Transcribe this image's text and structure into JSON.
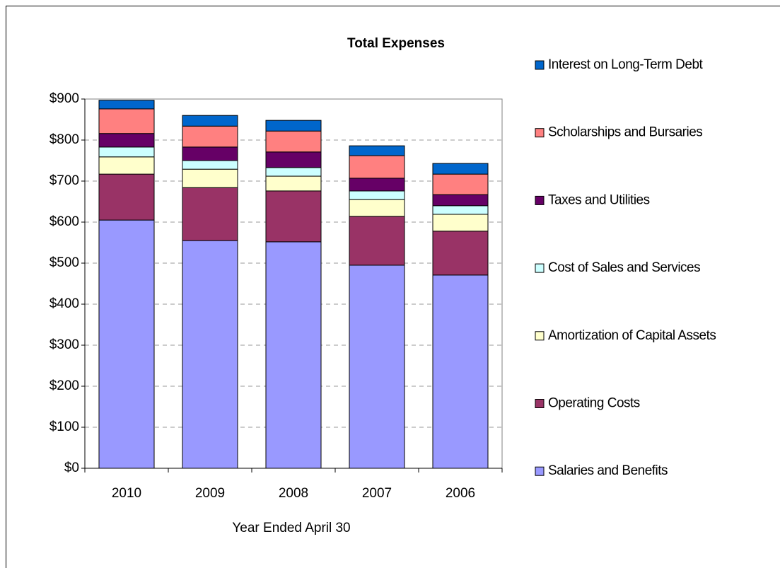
{
  "chart_data": {
    "type": "bar",
    "stacked": true,
    "title": "Total Expenses",
    "x_label": "Year Ended April 30",
    "categories": [
      "2010",
      "2009",
      "2008",
      "2007",
      "2006"
    ],
    "series": [
      {
        "name": "Salaries and Benefits",
        "color": "#9999ff",
        "values": [
          605,
          555,
          552,
          495,
          471
        ]
      },
      {
        "name": "Operating Costs",
        "color": "#993366",
        "values": [
          112,
          129,
          124,
          119,
          107
        ]
      },
      {
        "name": "Amortization of Capital Assets",
        "color": "#ffffcc",
        "values": [
          42,
          45,
          36,
          41,
          41
        ]
      },
      {
        "name": "Cost of Sales and Services",
        "color": "#ccffff",
        "values": [
          24,
          21,
          21,
          21,
          21
        ]
      },
      {
        "name": "Taxes and Utilities",
        "color": "#660066",
        "values": [
          33,
          33,
          38,
          31,
          27
        ]
      },
      {
        "name": "Scholarships and Bursaries",
        "color": "#ff8080",
        "values": [
          60,
          51,
          51,
          55,
          50
        ]
      },
      {
        "name": "Interest on Long-Term Debt",
        "color": "#0066cc",
        "values": [
          21,
          26,
          26,
          24,
          26
        ]
      }
    ],
    "ylim": [
      0,
      900
    ],
    "yticks": [
      {
        "value": 0,
        "label": "$0"
      },
      {
        "value": 100,
        "label": "$100"
      },
      {
        "value": 200,
        "label": "$200"
      },
      {
        "value": 300,
        "label": "$300"
      },
      {
        "value": 400,
        "label": "$400"
      },
      {
        "value": 500,
        "label": "$500"
      },
      {
        "value": 600,
        "label": "$600"
      },
      {
        "value": 700,
        "label": "$700"
      },
      {
        "value": 800,
        "label": "$800"
      },
      {
        "value": 900,
        "label": "$900"
      }
    ],
    "grid": true,
    "legend": "right"
  }
}
